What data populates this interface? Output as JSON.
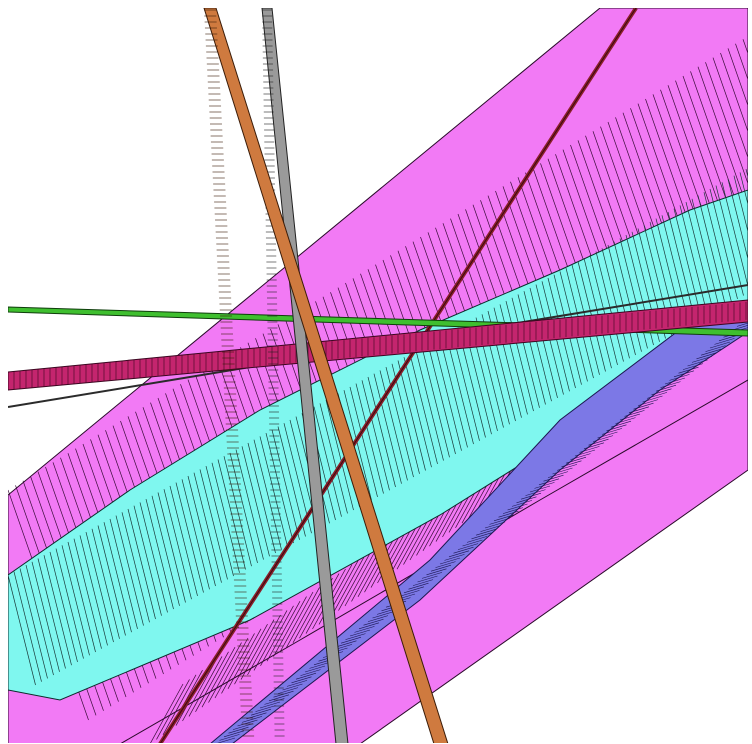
{
  "scene": {
    "background": "#ffffff",
    "edge_color": "#000000",
    "bodies": [
      {
        "id": "magenta-sheet",
        "label": "",
        "fill": "#f27af5",
        "edge": "#2a0a2a"
      },
      {
        "id": "cyan-tube",
        "label": "",
        "fill": "#7ff7ef",
        "edge": "#0d2b2b"
      },
      {
        "id": "blue-band",
        "label": "",
        "fill": "#7c78e6",
        "edge": "#1b1750"
      },
      {
        "id": "crimson-band",
        "label": "",
        "fill": "#c4256e",
        "edge": "#3b0620"
      },
      {
        "id": "orange-rod",
        "label": "",
        "fill": "#cf7a3f",
        "edge": "#3b1c08"
      },
      {
        "id": "gray-rod",
        "label": "",
        "fill": "#9a9a9a",
        "edge": "#222222"
      },
      {
        "id": "maroon-line",
        "label": "",
        "fill": "#8a1f2a",
        "edge": "#3a0a10"
      },
      {
        "id": "green-line",
        "label": "",
        "fill": "#3fbf2f",
        "edge": "#0f3d0c"
      }
    ]
  }
}
